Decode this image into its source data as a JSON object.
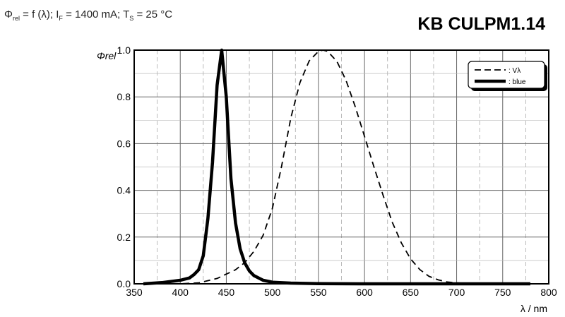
{
  "header": {
    "condition_parts": [
      "Φ",
      "rel",
      " = f (λ); I",
      "F",
      " = 1400 mA; T",
      "S",
      " = 25 °C"
    ],
    "product": "KB CULPM1.14"
  },
  "chart_data": {
    "type": "line",
    "title": "",
    "xlabel": "λ / nm",
    "ylabel": "Φrel",
    "xlim": [
      350,
      800
    ],
    "ylim": [
      0,
      1.0
    ],
    "xticks": [
      350,
      400,
      450,
      500,
      550,
      600,
      650,
      700,
      750,
      800
    ],
    "yticks": [
      0.0,
      0.2,
      0.4,
      0.6,
      0.8,
      1.0
    ],
    "grid": true,
    "legend_placement": "top-right",
    "series": [
      {
        "name": ": Vλ",
        "style": "dashed",
        "color": "#000000",
        "x": [
          380,
          400,
          420,
          440,
          460,
          470,
          480,
          490,
          500,
          510,
          520,
          530,
          540,
          550,
          555,
          560,
          570,
          580,
          590,
          600,
          610,
          620,
          630,
          640,
          650,
          660,
          670,
          680,
          690,
          700,
          720,
          750,
          780
        ],
        "y": [
          0.0,
          0.0004,
          0.004,
          0.023,
          0.06,
          0.091,
          0.139,
          0.208,
          0.323,
          0.503,
          0.71,
          0.862,
          0.954,
          0.995,
          1.0,
          0.995,
          0.952,
          0.87,
          0.757,
          0.631,
          0.503,
          0.381,
          0.265,
          0.175,
          0.107,
          0.061,
          0.032,
          0.017,
          0.008,
          0.004,
          0.001,
          0.0001,
          0.0
        ]
      },
      {
        "name": ": blue",
        "style": "solid-thick",
        "color": "#000000",
        "x": [
          360,
          380,
          400,
          410,
          415,
          420,
          425,
          430,
          435,
          440,
          445,
          450,
          455,
          460,
          465,
          470,
          475,
          480,
          490,
          500,
          520,
          550,
          600,
          700,
          780
        ],
        "y": [
          0.0,
          0.005,
          0.015,
          0.025,
          0.04,
          0.06,
          0.12,
          0.28,
          0.52,
          0.85,
          1.0,
          0.8,
          0.45,
          0.26,
          0.15,
          0.09,
          0.055,
          0.035,
          0.015,
          0.007,
          0.003,
          0.001,
          0.0,
          0.0,
          0.0
        ]
      }
    ]
  }
}
